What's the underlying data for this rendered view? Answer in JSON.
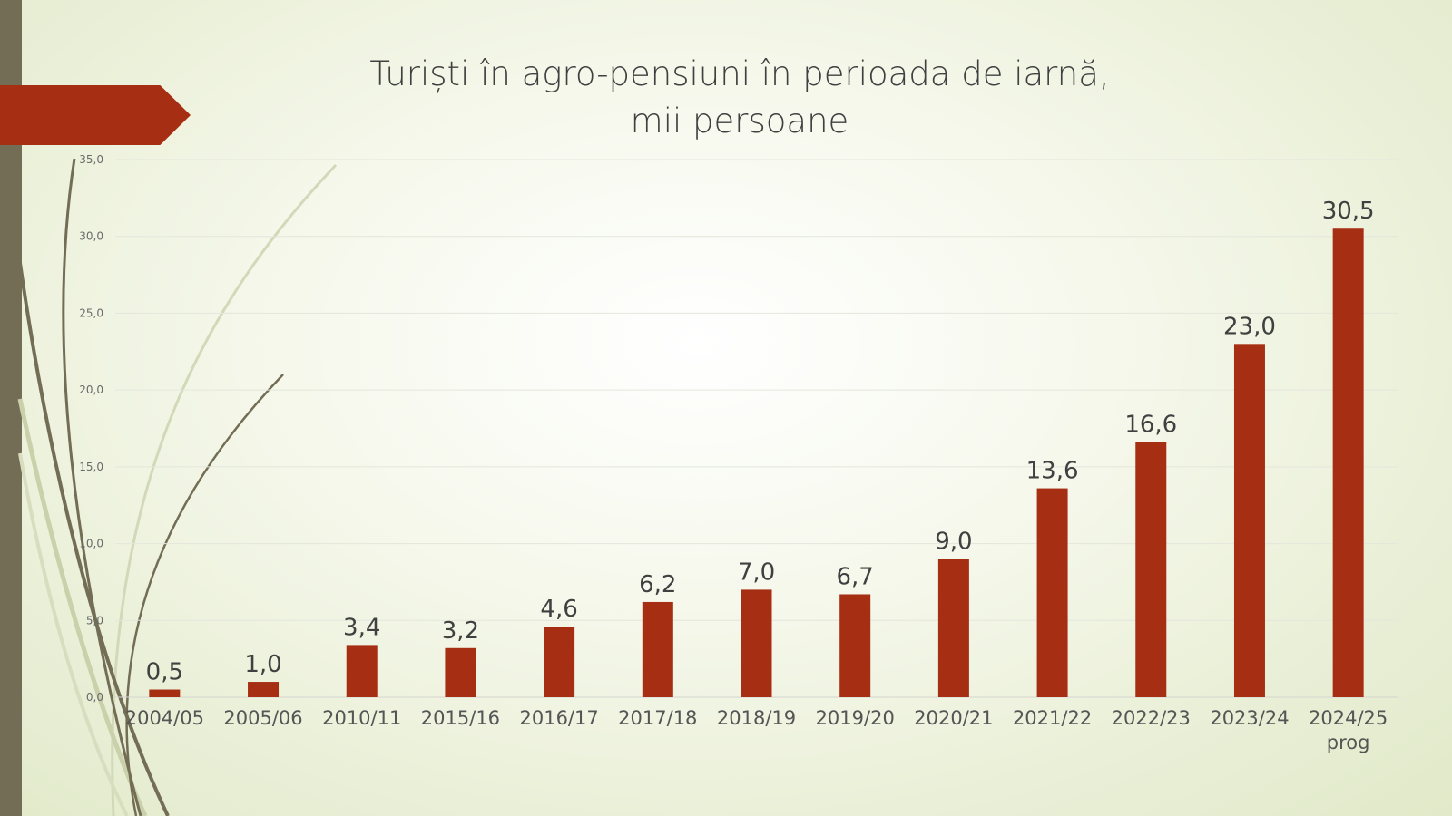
{
  "chart_data": {
    "type": "bar",
    "title_line1": "Turiști în agro-pensiuni în perioada de iarnă,",
    "title_line2": "mii persoane",
    "categories": [
      "2004/05",
      "2005/06",
      "2010/11",
      "2015/16",
      "2016/17",
      "2017/18",
      "2018/19",
      "2019/20",
      "2020/21",
      "2021/22",
      "2022/23",
      "2023/24",
      "2024/25 prog"
    ],
    "values": [
      0.5,
      1.0,
      3.4,
      3.2,
      4.6,
      6.2,
      7.0,
      6.7,
      9.0,
      13.6,
      16.6,
      23.0,
      30.5
    ],
    "value_labels": [
      "0,5",
      "1,0",
      "3,4",
      "3,2",
      "4,6",
      "6,2",
      "7,0",
      "6,7",
      "9,0",
      "13,6",
      "16,6",
      "23,0",
      "30,5"
    ],
    "y_ticks": [
      0,
      5,
      10,
      15,
      20,
      25,
      30,
      35
    ],
    "y_tick_labels": [
      "0,0",
      "5,0",
      "10,0",
      "15,0",
      "20,0",
      "25,0",
      "30,0",
      "35,0"
    ],
    "ylim": [
      0,
      35
    ],
    "xlabel": "",
    "ylabel": "",
    "grid": true,
    "bar_color": "#a62e12"
  },
  "colors": {
    "accent": "#a62e12",
    "side_bar": "#736d55",
    "text": "#404040"
  }
}
